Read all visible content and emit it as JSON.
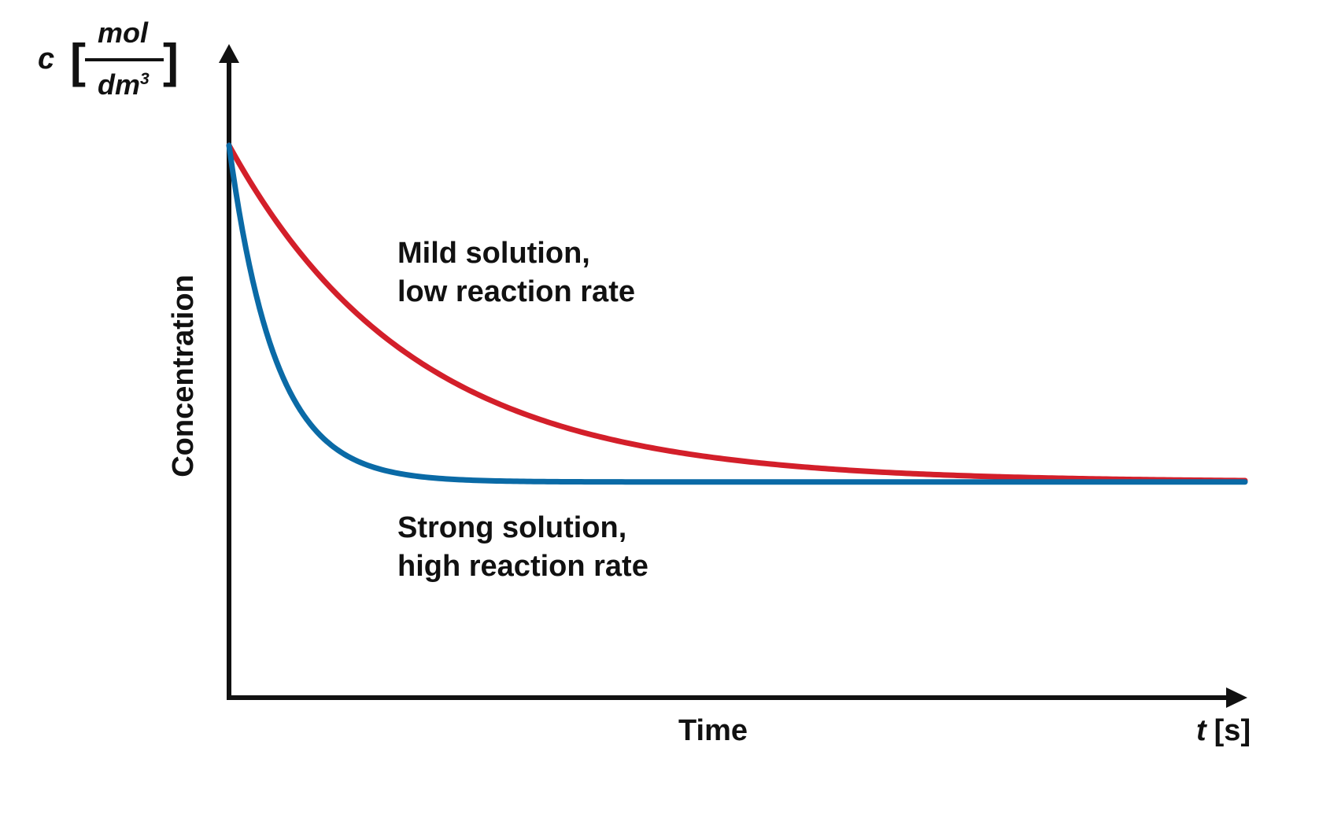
{
  "chart_data": {
    "type": "line",
    "x_axis": {
      "title": "Time",
      "unit_symbol": "t",
      "unit": "[s]",
      "range": [
        0,
        10
      ]
    },
    "y_axis": {
      "title": "Concentration",
      "unit_symbol": "c",
      "unit_numerator": "mol",
      "unit_denominator": "dm",
      "unit_denominator_exponent": "3",
      "range": [
        0,
        10
      ]
    },
    "grid": false,
    "ticks": false,
    "series": [
      {
        "color": "#d31f2a",
        "initial_value": 8.45,
        "final_value": 3.3,
        "decay_rate": 0.55,
        "x_range": [
          0,
          10
        ]
      },
      {
        "color": "#0a6aa6",
        "initial_value": 8.45,
        "final_value": 3.3,
        "decay_rate": 2.2,
        "x_range": [
          0,
          10
        ]
      }
    ],
    "annotations": [
      {
        "line1": "Mild solution,",
        "line2": "low reaction rate",
        "color": "#111111"
      },
      {
        "line1": "Strong solution,",
        "line2": "high reaction rate",
        "color": "#111111"
      }
    ]
  }
}
